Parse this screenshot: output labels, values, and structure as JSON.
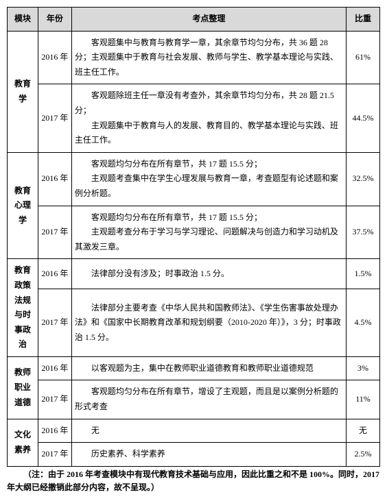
{
  "header": {
    "module": "模块",
    "year": "年份",
    "desc": "考点整理",
    "pct": "比重"
  },
  "rows": [
    {
      "module": "教育学",
      "items": [
        {
          "year": "2016 年",
          "desc": "客观题集中与教育与教育学一章，其余章节均匀分布，共 36 题 28 分；主观题集中于教育与社会发展、教师与学生、教学基本理论与实践、班主任工作。",
          "pct": "61%"
        },
        {
          "year": "2017 年",
          "desc": "客观题除班主任一章没有考查外，其余章节均匀分布，共 28 题 21.5 分；\n主观题集中于教育与人的发展、教育目的、教学基本理论与实践、班主任工作。",
          "pct": "44.5%"
        }
      ]
    },
    {
      "module": "教育心理学",
      "items": [
        {
          "year": "2016 年",
          "desc": "客观题均匀分布在所有章节，共 17 题 15.5 分；\n主观题考查集中在学生心理发展与教育一章，考查题型有论述题和案例分析题。",
          "pct": "32.5%"
        },
        {
          "year": "2017 年",
          "desc": "客观题均匀分布在所有章节，共 17 题 15.5 分；\n主观题考查分布于学习与学习理论、问题解决与创造力和学习动机及其激发三章。",
          "pct": "37.5%"
        }
      ]
    },
    {
      "module": "教育政策法规与时事政治",
      "items": [
        {
          "year": "2016 年",
          "desc": "法律部分没有涉及；时事政治 1.5 分。",
          "pct": "1.5%"
        },
        {
          "year": "2017 年",
          "desc": "法律部分主要考查《中华人民共和国教师法》、《学生伤害事故处理办法》和《国家中长期教育改革和规划纲要（2010-2020 年）》，3 分；时事政治 1.5 分。",
          "pct": "4.5%"
        }
      ]
    },
    {
      "module": "教师职业道德",
      "items": [
        {
          "year": "2016 年",
          "desc": "以客观题为主，集中在教师职业道德教育和教师职业道德规范",
          "pct": "3%"
        },
        {
          "year": "2017 年",
          "desc": "客观题均匀分布在所有章节，增设了主观题，而且是以案例分析题的形式考查",
          "pct": "11%"
        }
      ]
    },
    {
      "module": "文化素养",
      "items": [
        {
          "year": "2016 年",
          "desc": "无",
          "pct": "无"
        },
        {
          "year": "2017 年",
          "desc": "历史素养、科学素养",
          "pct": "2.5%"
        }
      ]
    }
  ],
  "footnote": "（注：由于 2016 年考查模块中有现代教育技术基础与应用，因此比重之和不是 100%。同时，2017 年大纲已经撤销此部分内容，故不呈现。）"
}
